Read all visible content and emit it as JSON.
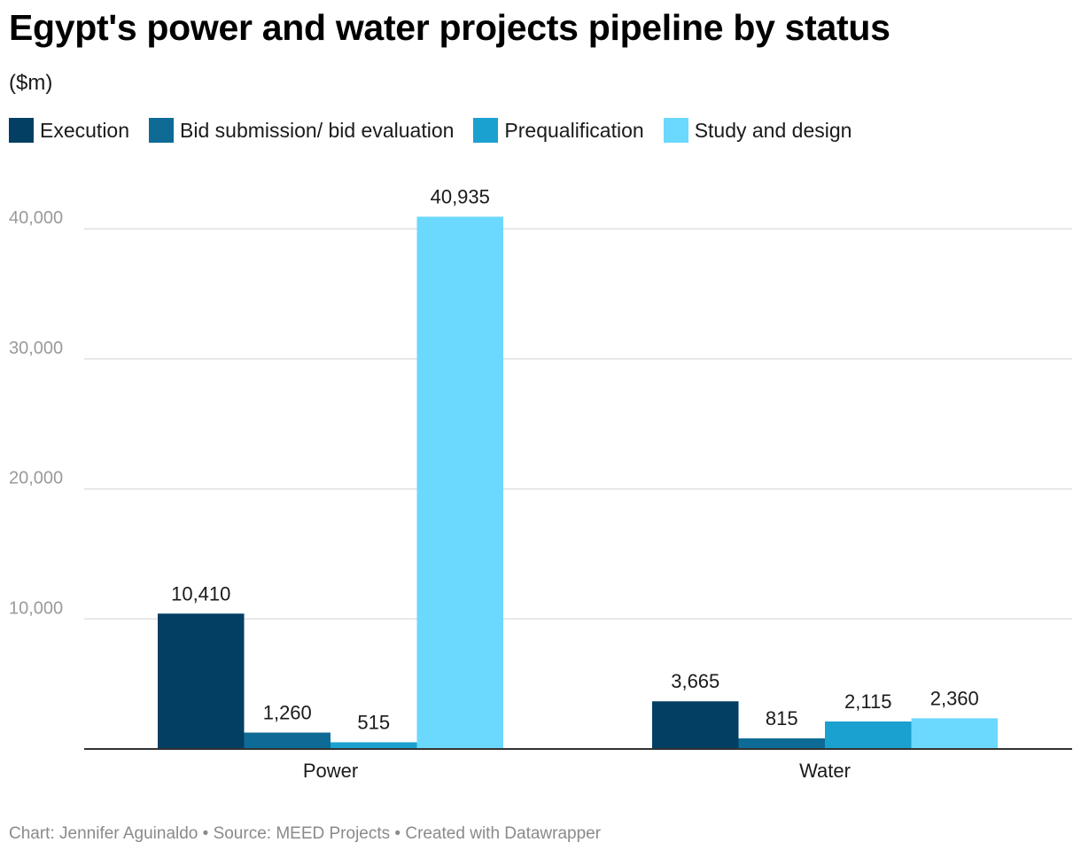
{
  "chart_data": {
    "type": "bar",
    "title": "Egypt's power and water projects pipeline by status",
    "subtitle": "($m)",
    "categories": [
      "Power",
      "Water"
    ],
    "series": [
      {
        "name": "Execution",
        "color": "#023f63",
        "values": [
          10410,
          3665
        ],
        "labels": [
          "10,410",
          "3,665"
        ]
      },
      {
        "name": "Bid submission/ bid evaluation",
        "color": "#0e6b96",
        "values": [
          1260,
          815
        ],
        "labels": [
          "1,260",
          "815"
        ]
      },
      {
        "name": "Prequalification",
        "color": "#1aa1cf",
        "values": [
          515,
          2115
        ],
        "labels": [
          "515",
          "2,115"
        ]
      },
      {
        "name": "Study and design",
        "color": "#6bd8fd",
        "values": [
          40935,
          2360
        ],
        "labels": [
          "40,935",
          "2,360"
        ]
      }
    ],
    "yticks": [
      10000,
      20000,
      30000,
      40000
    ],
    "ytick_labels": [
      "10,000",
      "20,000",
      "30,000",
      "40,000"
    ],
    "ylim": [
      0,
      40935
    ],
    "grid": true,
    "legend_position": "top-left"
  },
  "footer": {
    "text": "Chart: Jennifer Aguinaldo • Source: MEED Projects • Created with Datawrapper"
  }
}
